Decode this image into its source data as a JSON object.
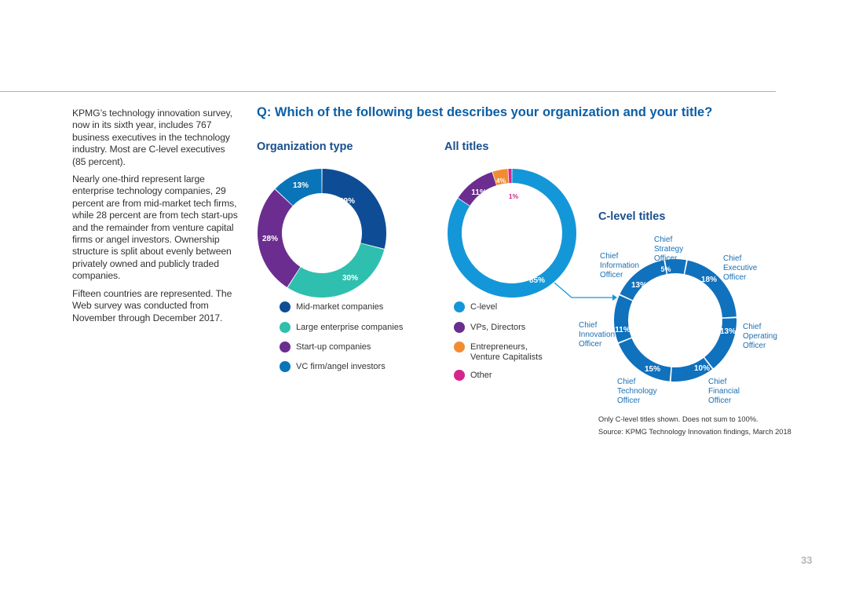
{
  "intro": {
    "p1": "KPMG’s technology innovation survey, now in its sixth year, includes 767 business executives in the technology industry. Most are C-level executives (85 percent).",
    "p2": "Nearly one-third represent large enterprise technology companies, 29 percent are from mid-market tech firms, while 28 percent are from tech start-ups and the remainder from venture capital firms or angel investors. Ownership structure is split about evenly between privately owned and publicly traded companies.",
    "p3": "Fifteen countries are represented. The Web survey was conducted from November through December 2017."
  },
  "question": "Q: Which of the following best describes your organization and your title?",
  "footnote": "Only C-level titles shown. Does not sum to 100%.",
  "source": "Source: KPMG Technology Innovation findings, March 2018",
  "page_number": "33",
  "chart_data": [
    {
      "type": "pie",
      "title": "Organization type",
      "categories": [
        "Mid-market companies",
        "Large enterprise companies",
        "Start-up companies",
        "VC firm/angel investors"
      ],
      "values": [
        29,
        30,
        28,
        13
      ],
      "labels": [
        "29%",
        "30%",
        "28%",
        "13%"
      ],
      "colors": [
        "#0e4d96",
        "#2fbfae",
        "#6b2d8f",
        "#0a74b8"
      ]
    },
    {
      "type": "pie",
      "title": "All titles",
      "categories": [
        "C-level",
        "VPs, Directors",
        "Entrepreneurs, Venture Capitalists",
        "Other"
      ],
      "values": [
        85,
        11,
        4,
        1
      ],
      "labels": [
        "85%",
        "11%",
        "4%",
        "1%"
      ],
      "colors": [
        "#1497d8",
        "#6b2d8f",
        "#f28c32",
        "#d6248f"
      ]
    },
    {
      "type": "pie",
      "title": "C-level titles",
      "categories": [
        "Chief Executive Officer",
        "Chief Operating Officer",
        "Chief Financial Officer",
        "Chief Technology Officer",
        "Chief Innovation Officer",
        "Chief Information Officer",
        "Chief Strategy Officer"
      ],
      "values": [
        18,
        13,
        10,
        15,
        11,
        13,
        5
      ],
      "labels": [
        "18%",
        "13%",
        "10%",
        "15%",
        "11%",
        "13%",
        "5%"
      ],
      "colors": [
        "#1071bd",
        "#1071bd",
        "#1071bd",
        "#1071bd",
        "#1071bd",
        "#1071bd",
        "#1071bd"
      ]
    }
  ]
}
